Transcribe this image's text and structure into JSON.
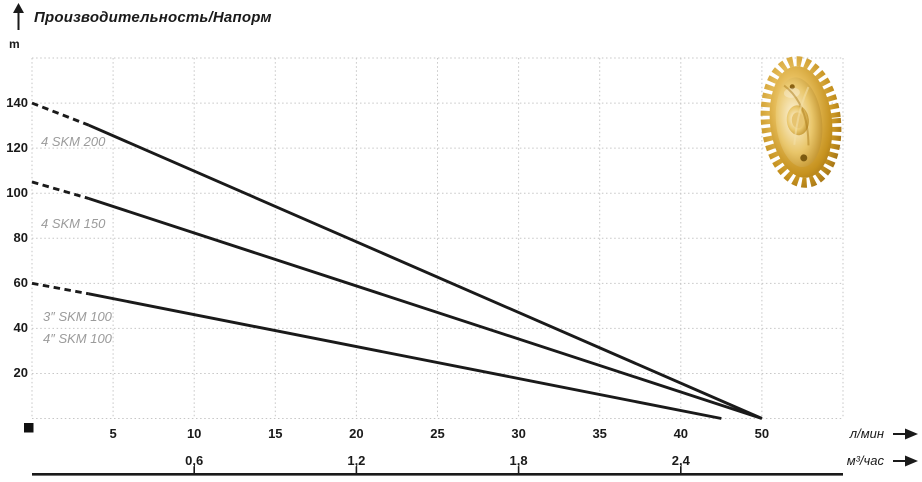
{
  "page": {
    "background": "#ffffff"
  },
  "chart_data": {
    "type": "line",
    "title": "Производительность/Напорм",
    "y_axis": {
      "unit": "m",
      "ticks": [
        20,
        40,
        60,
        80,
        100,
        120,
        140
      ],
      "grid_max": 160,
      "grid_step": 20,
      "range": [
        0,
        160
      ]
    },
    "x_axis_primary": {
      "unit": "л/мин",
      "ticks": [
        5,
        10,
        15,
        20,
        25,
        30,
        35,
        40,
        50
      ]
    },
    "x_axis_secondary": {
      "unit": "м³/час",
      "ticks": [
        {
          "label": "0,6",
          "lmin": 10
        },
        {
          "label": "1,2",
          "lmin": 20
        },
        {
          "label": "1,8",
          "lmin": 30
        },
        {
          "label": "2,4",
          "lmin": 40
        }
      ]
    },
    "grid": {
      "show": true,
      "style": "dotted",
      "color": "#c6c6c6"
    },
    "legend_position": "inline-left",
    "series": [
      {
        "name": "4 SKM 200",
        "label_lines": [
          "4 SKM 200"
        ],
        "points_lmin_m": [
          [
            0,
            140
          ],
          [
            50,
            0
          ]
        ],
        "dashed_until_lmin": 3.5,
        "color": "#1a1a1a"
      },
      {
        "name": "4 SKM 150",
        "label_lines": [
          "4 SKM 150"
        ],
        "points_lmin_m": [
          [
            0,
            105
          ],
          [
            50,
            0
          ]
        ],
        "dashed_until_lmin": 3.5,
        "color": "#1a1a1a"
      },
      {
        "name": "3″ SKM 100 / 4″ SKM 100",
        "label_lines": [
          "3″ SKM 100",
          "4″ SKM 100"
        ],
        "points_lmin_m": [
          [
            0,
            60
          ],
          [
            45,
            0
          ]
        ],
        "dashed_until_lmin": 3.5,
        "color": "#1a1a1a"
      }
    ],
    "axis_arrows": {
      "y": "up",
      "x": "right"
    }
  },
  "icons": {
    "y_axis_arrow": "arrow-up",
    "x_axis_arrow_primary": "arrow-right",
    "x_axis_arrow_secondary": "arrow-right",
    "impeller": "brass-pump-impeller"
  },
  "colors": {
    "curve": "#1a1a1a",
    "grid": "#c6c6c6",
    "series_label": "#9b9b9b",
    "text": "#1a1a1a",
    "impeller_gold_light": "#f8edc9",
    "impeller_gold": "#ddb150",
    "impeller_gold_dark": "#996a12"
  }
}
